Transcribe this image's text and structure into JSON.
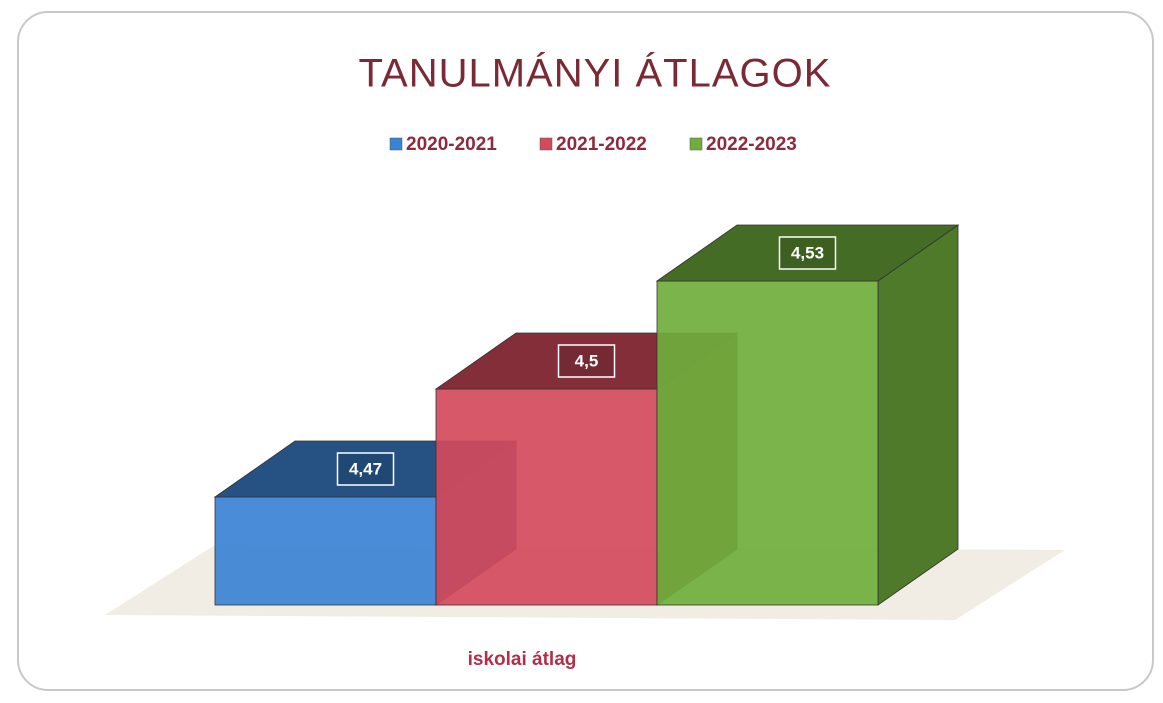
{
  "chart_data": {
    "type": "bar3d",
    "title": "TANULMÁNYI ÁTLAGOK",
    "categories": [
      "iskolai átlag"
    ],
    "series": [
      {
        "name": "2020-2021",
        "color": "#3b82d4",
        "values": [
          4.47
        ],
        "value_labels": [
          "4,47"
        ]
      },
      {
        "name": "2021-2022",
        "color": "#d44a5c",
        "values": [
          4.5
        ],
        "value_labels": [
          "4,5"
        ]
      },
      {
        "name": "2022-2023",
        "color": "#6fae3c",
        "values": [
          4.53
        ],
        "value_labels": [
          "4,53"
        ]
      }
    ],
    "ylim": [
      4.44,
      4.54
    ],
    "legend": "top"
  }
}
